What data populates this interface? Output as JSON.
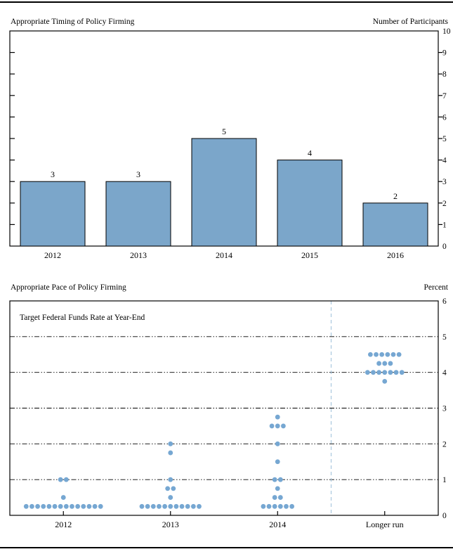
{
  "figure": {
    "panel1_title": "Appropriate Timing of Policy Firming",
    "panel1_right_axis_label": "Number of Participants",
    "panel2_title": "Appropriate Pace of Policy Firming",
    "panel2_right_axis_label": "Percent",
    "panel2_inner_label": "Target Federal Funds Rate at Year-End"
  },
  "chart_data": [
    {
      "type": "bar",
      "title": "Appropriate Timing of Policy Firming",
      "right_axis_label": "Number of Participants",
      "categories": [
        "2012",
        "2013",
        "2014",
        "2015",
        "2016"
      ],
      "values": [
        3,
        3,
        5,
        4,
        2
      ],
      "ylim": [
        0,
        10
      ],
      "ytick_step": 1,
      "ytick_side": "right",
      "grid": false,
      "value_labels": true,
      "bar_color": "#7BA6CA",
      "bar_border_color": "#000000"
    },
    {
      "type": "scatter",
      "subtype": "dot-plot",
      "title": "Appropriate Pace of Policy Firming",
      "right_axis_label": "Percent",
      "inner_label": "Target Federal Funds Rate at Year-End",
      "categories": [
        "2012",
        "2013",
        "2014",
        "Longer run"
      ],
      "ylim": [
        0,
        6
      ],
      "ytick_step": 1,
      "ytick_side": "right",
      "grid": "horizontal dash-dot lines at 1,2,3,4,5",
      "separator_before_category": "Longer run",
      "dot_color": "#76A7D2",
      "separator_color": "#AAC7DE",
      "series": [
        {
          "category": "2012",
          "dots": [
            {
              "rate": 1.0,
              "count": 2
            },
            {
              "rate": 0.5,
              "count": 1
            },
            {
              "rate": 0.25,
              "count": 14
            }
          ]
        },
        {
          "category": "2013",
          "dots": [
            {
              "rate": 2.0,
              "count": 1
            },
            {
              "rate": 1.75,
              "count": 1
            },
            {
              "rate": 1.0,
              "count": 1
            },
            {
              "rate": 0.75,
              "count": 2
            },
            {
              "rate": 0.5,
              "count": 1
            },
            {
              "rate": 0.25,
              "count": 11
            }
          ]
        },
        {
          "category": "2014",
          "dots": [
            {
              "rate": 2.75,
              "count": 1
            },
            {
              "rate": 2.5,
              "count": 3
            },
            {
              "rate": 2.0,
              "count": 1
            },
            {
              "rate": 1.5,
              "count": 1
            },
            {
              "rate": 1.0,
              "count": 2
            },
            {
              "rate": 0.75,
              "count": 1
            },
            {
              "rate": 0.5,
              "count": 2
            },
            {
              "rate": 0.25,
              "count": 6
            }
          ]
        },
        {
          "category": "Longer run",
          "dots": [
            {
              "rate": 4.5,
              "count": 6
            },
            {
              "rate": 4.25,
              "count": 3
            },
            {
              "rate": 4.0,
              "count": 7
            },
            {
              "rate": 3.75,
              "count": 1
            }
          ]
        }
      ]
    }
  ]
}
